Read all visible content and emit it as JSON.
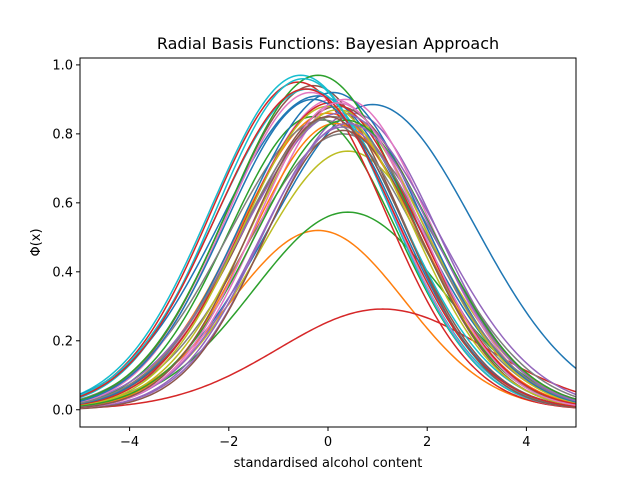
{
  "chart_data": {
    "type": "line",
    "title": "Radial Basis Functions: Bayesian Approach",
    "xlabel": "standardised alcohol content",
    "ylabel": "Φ(x)",
    "xlim": [
      -5,
      5
    ],
    "ylim": [
      -0.05,
      1.02
    ],
    "xticks": [
      -4,
      -2,
      0,
      2,
      4
    ],
    "xtick_labels": [
      "−4",
      "−2",
      "0",
      "2",
      "4"
    ],
    "yticks": [
      0.0,
      0.2,
      0.4,
      0.6,
      0.8,
      1.0
    ],
    "ytick_labels": [
      "0.0",
      "0.2",
      "0.4",
      "0.6",
      "0.8",
      "1.0"
    ],
    "grid": false,
    "legend": "none",
    "function": "A*exp(-(x-mu)^2/(2*s^2))",
    "series": [
      {
        "color": "#1f77b4",
        "A": 0.885,
        "mu": 0.9,
        "s": 2.05
      },
      {
        "color": "#ff7f0e",
        "A": 0.52,
        "mu": -0.2,
        "s": 1.75
      },
      {
        "color": "#2ca02c",
        "A": 0.573,
        "mu": 0.4,
        "s": 1.9
      },
      {
        "color": "#d62728",
        "A": 0.292,
        "mu": 1.1,
        "s": 2.1
      },
      {
        "color": "#9467bd",
        "A": 0.86,
        "mu": 0.5,
        "s": 1.7
      },
      {
        "color": "#8c564b",
        "A": 0.94,
        "mu": -0.3,
        "s": 1.75
      },
      {
        "color": "#e377c2",
        "A": 0.9,
        "mu": 0.1,
        "s": 1.8
      },
      {
        "color": "#7f7f7f",
        "A": 0.8,
        "mu": 0.3,
        "s": 1.9
      },
      {
        "color": "#bcbd22",
        "A": 0.75,
        "mu": 0.4,
        "s": 1.8
      },
      {
        "color": "#17becf",
        "A": 0.97,
        "mu": -0.55,
        "s": 1.8
      },
      {
        "color": "#1f77b4",
        "A": 0.91,
        "mu": -0.2,
        "s": 1.95
      },
      {
        "color": "#ff7f0e",
        "A": 0.86,
        "mu": 0.0,
        "s": 1.8
      },
      {
        "color": "#2ca02c",
        "A": 0.85,
        "mu": -0.3,
        "s": 1.7
      },
      {
        "color": "#d62728",
        "A": 0.95,
        "mu": -0.6,
        "s": 1.75
      },
      {
        "color": "#9467bd",
        "A": 0.82,
        "mu": 0.3,
        "s": 1.65
      },
      {
        "color": "#8c564b",
        "A": 0.88,
        "mu": 0.2,
        "s": 1.85
      },
      {
        "color": "#e377c2",
        "A": 0.9,
        "mu": 0.35,
        "s": 1.7
      },
      {
        "color": "#7f7f7f",
        "A": 0.84,
        "mu": -0.1,
        "s": 1.9
      },
      {
        "color": "#bcbd22",
        "A": 0.87,
        "mu": 0.2,
        "s": 1.75
      },
      {
        "color": "#17becf",
        "A": 0.93,
        "mu": -0.4,
        "s": 1.85
      },
      {
        "color": "#1f77b4",
        "A": 0.92,
        "mu": 0.1,
        "s": 1.8
      },
      {
        "color": "#ff7f0e",
        "A": 0.83,
        "mu": 0.15,
        "s": 1.7
      },
      {
        "color": "#2ca02c",
        "A": 0.97,
        "mu": -0.2,
        "s": 1.8
      },
      {
        "color": "#d62728",
        "A": 0.89,
        "mu": 0.05,
        "s": 1.75
      },
      {
        "color": "#9467bd",
        "A": 0.86,
        "mu": 0.25,
        "s": 1.95
      },
      {
        "color": "#8c564b",
        "A": 0.81,
        "mu": 0.3,
        "s": 1.6
      },
      {
        "color": "#e377c2",
        "A": 0.92,
        "mu": -0.35,
        "s": 1.7
      },
      {
        "color": "#7f7f7f",
        "A": 0.85,
        "mu": 0.1,
        "s": 1.85
      },
      {
        "color": "#bcbd22",
        "A": 0.88,
        "mu": 0.0,
        "s": 1.7
      },
      {
        "color": "#17becf",
        "A": 0.96,
        "mu": -0.5,
        "s": 1.75
      },
      {
        "color": "#1f77b4",
        "A": 0.9,
        "mu": -0.3,
        "s": 1.75
      },
      {
        "color": "#2ca02c",
        "A": 0.84,
        "mu": 0.35,
        "s": 1.8
      },
      {
        "color": "#d62728",
        "A": 0.93,
        "mu": -0.45,
        "s": 1.8
      },
      {
        "color": "#9467bd",
        "A": 0.83,
        "mu": 0.4,
        "s": 1.75
      },
      {
        "color": "#e377c2",
        "A": 0.89,
        "mu": 0.2,
        "s": 1.65
      },
      {
        "color": "#8c564b",
        "A": 0.85,
        "mu": 0.0,
        "s": 1.6
      }
    ]
  }
}
